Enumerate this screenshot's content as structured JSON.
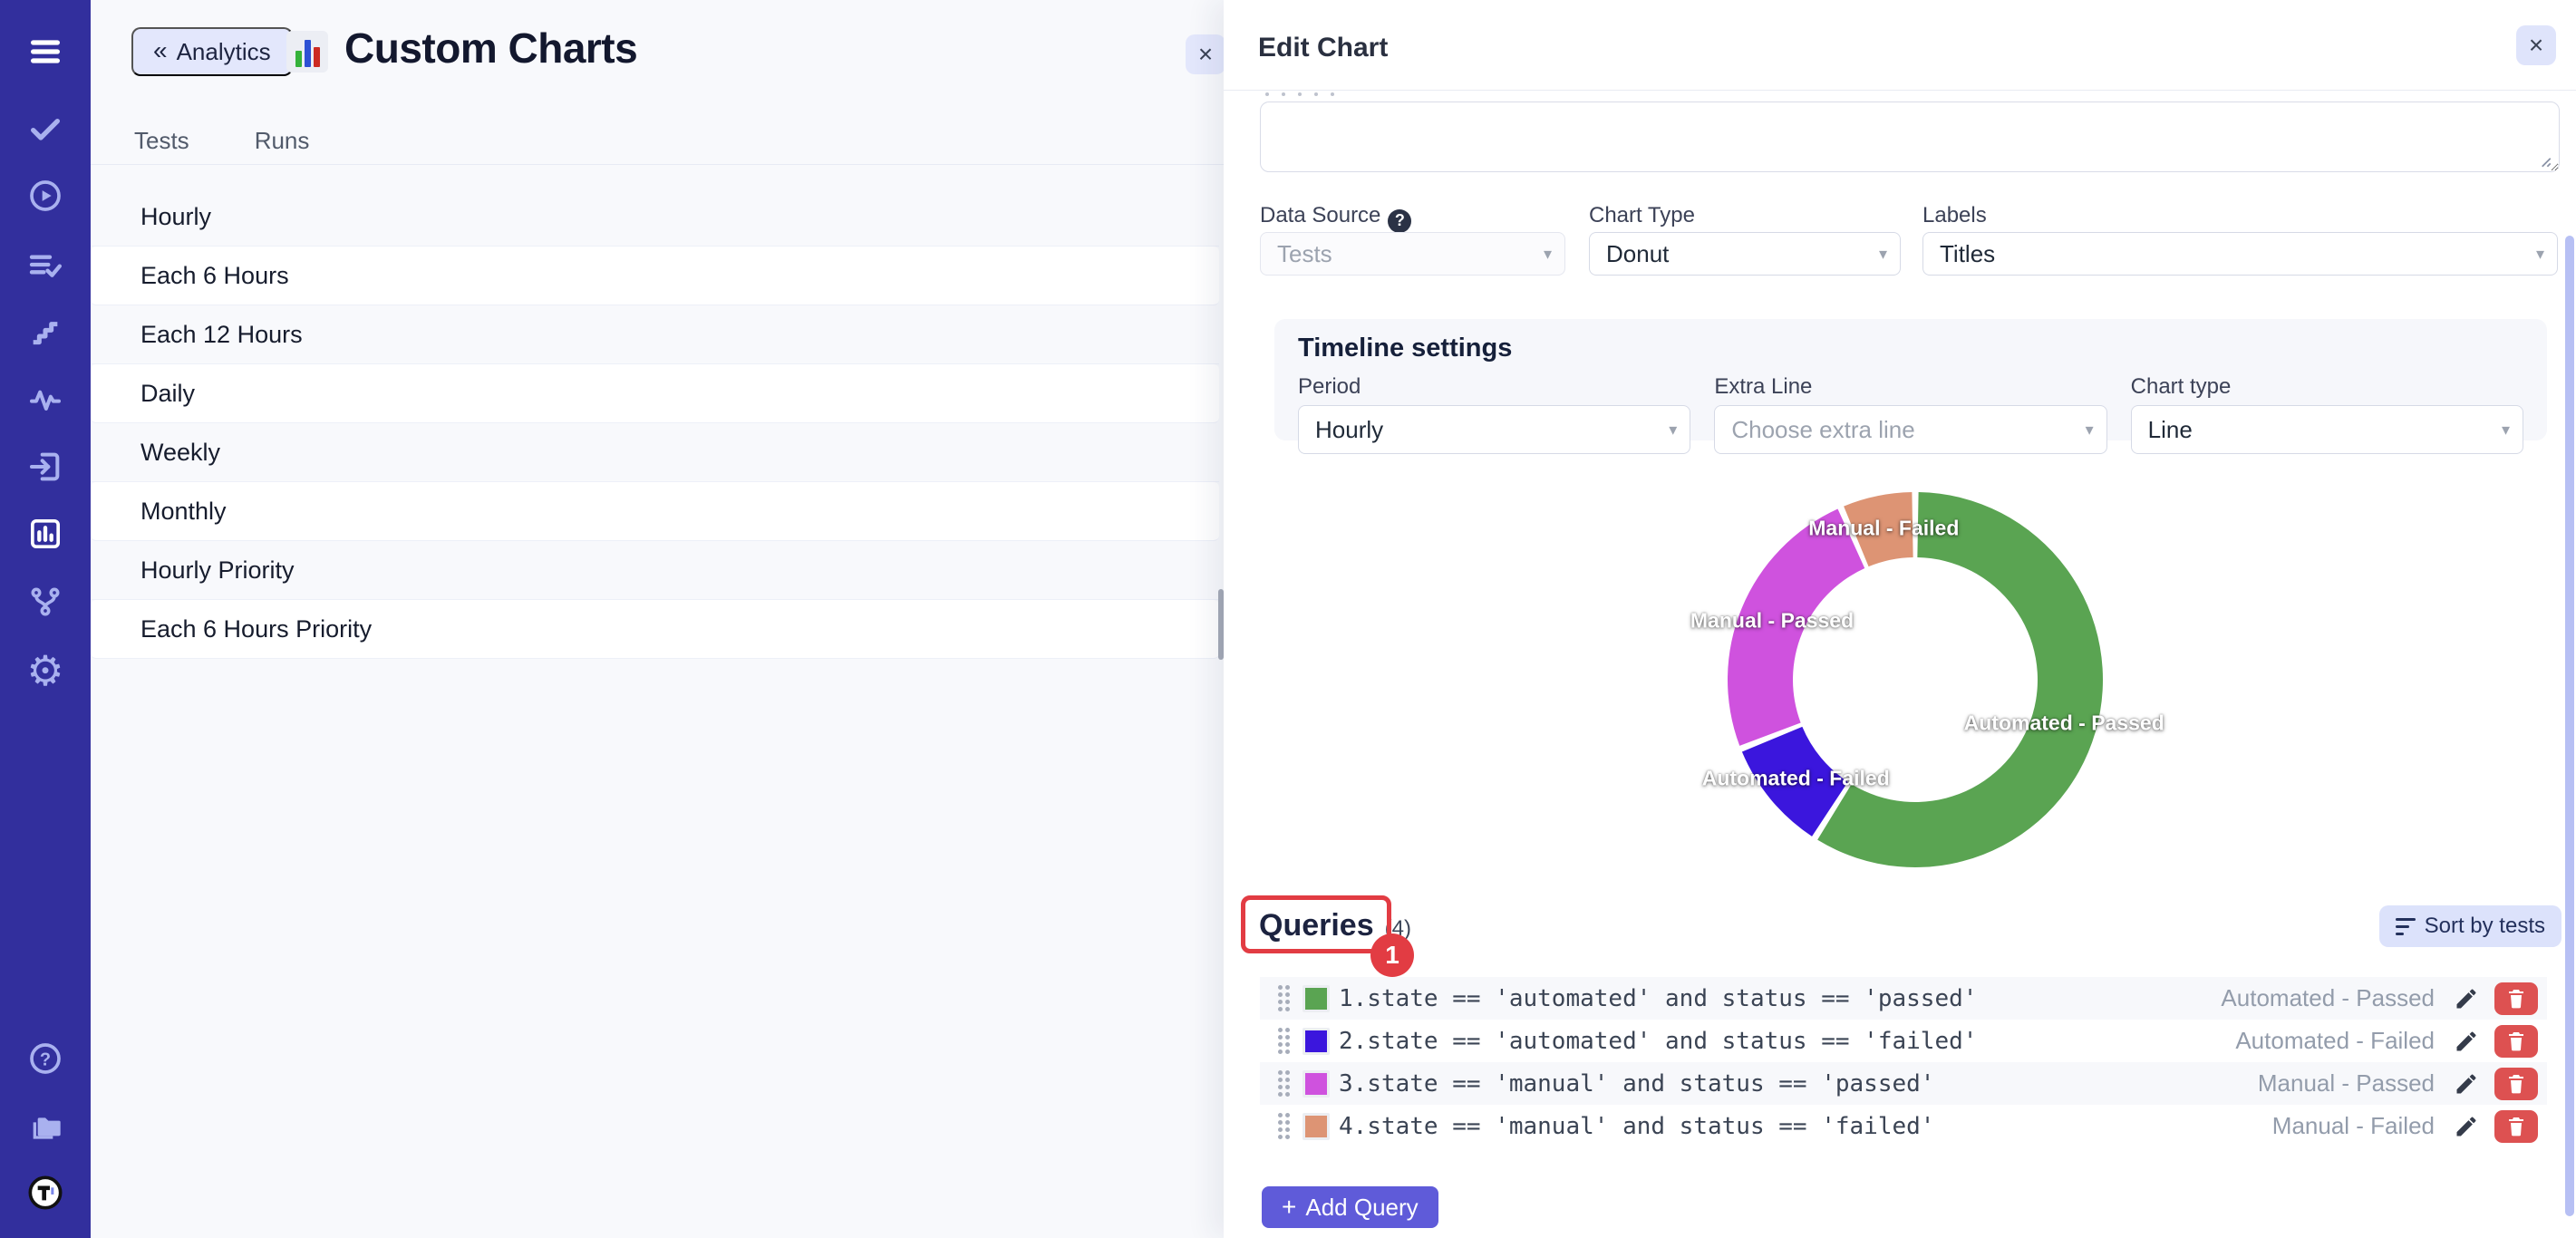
{
  "colors": {
    "sidebar_bg": "#322f9d",
    "accent": "#5f5bd9",
    "annotation_red": "#e23c43",
    "delete_red": "#dd5151",
    "panel_bg": "#f8f9fc"
  },
  "glyphs": {
    "chevrons_left": "«",
    "close": "×",
    "dropdown": "▾",
    "help": "?",
    "plus": "+"
  },
  "sidebar": {
    "icons": [
      "hamburger-menu",
      "checkmark",
      "play-circle",
      "list-check",
      "steps",
      "pulse",
      "sign-in",
      "bar-chart-active",
      "git-branch",
      "gear",
      "help-circle",
      "folders",
      "logo-t"
    ]
  },
  "left_panel": {
    "back_button": "Analytics",
    "title": "Custom Charts",
    "tabs": [
      {
        "label": "Tests"
      },
      {
        "label": "Runs"
      }
    ],
    "items": [
      {
        "label": "Hourly"
      },
      {
        "label": "Each 6 Hours"
      },
      {
        "label": "Each 12 Hours"
      },
      {
        "label": "Daily"
      },
      {
        "label": "Weekly"
      },
      {
        "label": "Monthly"
      },
      {
        "label": "Hourly Priority"
      },
      {
        "label": "Each 6 Hours Priority"
      }
    ]
  },
  "edit_panel": {
    "title": "Edit Chart",
    "fields": {
      "data_source": {
        "label": "Data Source",
        "value": "Tests",
        "disabled": true
      },
      "chart_type": {
        "label": "Chart Type",
        "value": "Donut"
      },
      "labels": {
        "label": "Labels",
        "value": "Titles"
      }
    },
    "timeline": {
      "title": "Timeline settings",
      "period": {
        "label": "Period",
        "value": "Hourly"
      },
      "extra_line": {
        "label": "Extra Line",
        "placeholder": "Choose extra line"
      },
      "chart_type": {
        "label": "Chart type",
        "value": "Line"
      }
    },
    "queries": {
      "title": "Queries",
      "count": "(4)",
      "annotation_badge": "1",
      "sort_button": "Sort by tests",
      "add_button": "Add Query",
      "rows": [
        {
          "color": "#5aa452",
          "query": "1.state == 'automated' and status == 'passed'",
          "label": "Automated - Passed"
        },
        {
          "color": "#3b16dd",
          "query": "2.state == 'automated' and status == 'failed'",
          "label": "Automated - Failed"
        },
        {
          "color": "#cf52de",
          "query": "3.state == 'manual' and status == 'passed'",
          "label": "Manual - Passed"
        },
        {
          "color": "#dd9474",
          "query": "4.state == 'manual' and status == 'failed'",
          "label": "Manual - Failed"
        }
      ]
    }
  },
  "chart_data": {
    "type": "pie",
    "subtype": "donut",
    "categories": [
      "Automated - Passed",
      "Automated - Failed",
      "Manual - Passed",
      "Manual - Failed"
    ],
    "values": [
      59,
      10,
      24.5,
      6.5
    ],
    "unit": "percent-estimated-from-arc-angles",
    "colors": [
      "#5aa452",
      "#3b16dd",
      "#cf52de",
      "#dd9474"
    ],
    "labels_on_slices": true,
    "legend": "none",
    "start_angle_deg_from_top": 0,
    "direction": "clockwise",
    "inner_radius_ratio": 0.65
  }
}
